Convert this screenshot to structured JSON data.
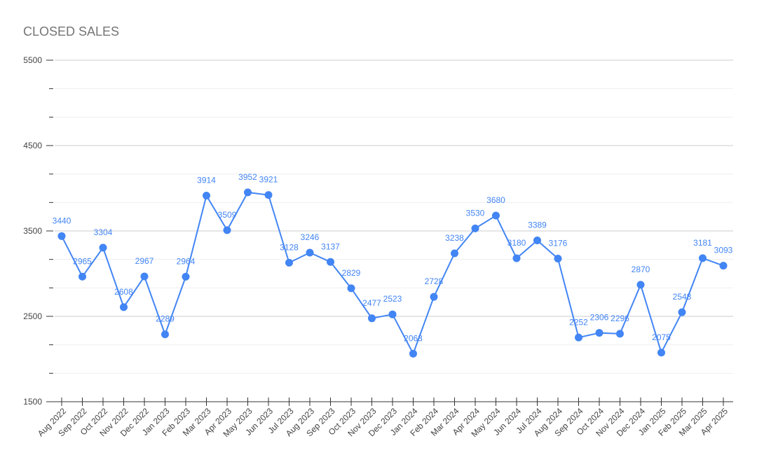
{
  "chart_data": {
    "type": "line",
    "title": "CLOSED SALES",
    "xlabel": "",
    "ylabel": "",
    "ylim": [
      1500,
      5500
    ],
    "y_ticks": [
      "1500",
      "2500",
      "3500",
      "4500",
      "5500"
    ],
    "grid": true,
    "legend": "none",
    "categories": [
      "Aug 2022",
      "Sep 2022",
      "Oct 2022",
      "Nov 2022",
      "Dec 2022",
      "Jan 2023",
      "Feb 2023",
      "Mar 2023",
      "Apr 2023",
      "May 2023",
      "Jun 2023",
      "Jul 2023",
      "Aug 2023",
      "Sep 2023",
      "Oct 2023",
      "Nov 2023",
      "Dec 2023",
      "Jan 2024",
      "Feb 2024",
      "Mar 2024",
      "Apr 2024",
      "May 2024",
      "Jun 2024",
      "Jul 2024",
      "Aug 2024",
      "Sep 2024",
      "Oct 2024",
      "Nov 2024",
      "Dec 2024",
      "Jan 2025",
      "Feb 2025",
      "Mar 2025",
      "Apr 2025"
    ],
    "series": [
      {
        "values": [
          3440,
          2965,
          3304,
          2608,
          2967,
          2289,
          2964,
          3914,
          3509,
          3952,
          3921,
          3128,
          3246,
          3137,
          2829,
          2477,
          2523,
          2063,
          2728,
          3238,
          3530,
          3680,
          3180,
          3389,
          3176,
          2252,
          2306,
          2296,
          2870,
          2075,
          2548,
          3181,
          3093
        ],
        "color": "#4285f4"
      }
    ]
  }
}
